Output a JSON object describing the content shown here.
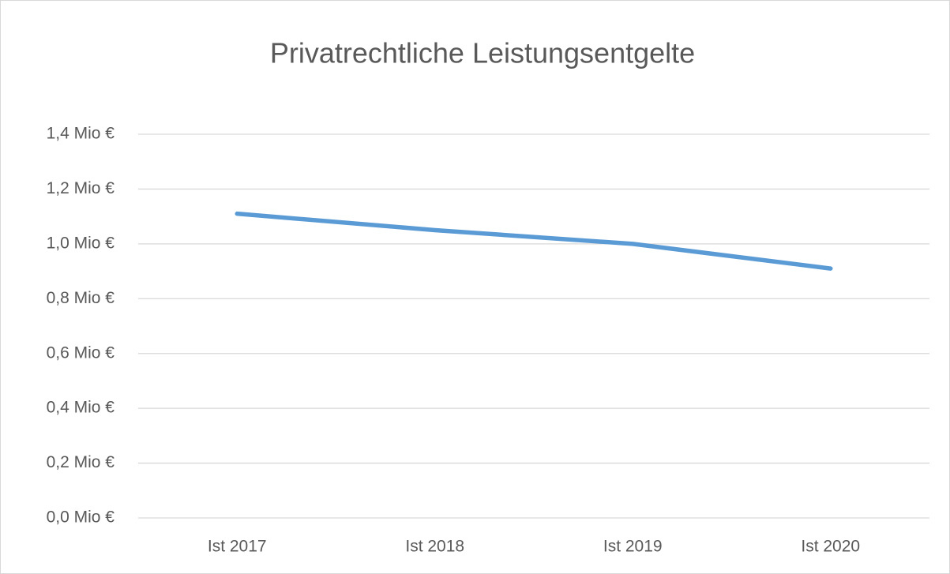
{
  "chart_data": {
    "type": "line",
    "title": "Privatrechtliche Leistungsentgelte",
    "categories": [
      "Ist 2017",
      "Ist 2018",
      "Ist 2019",
      "Ist 2020"
    ],
    "series": [
      {
        "name": "Privatrechtliche Leistungsentgelte",
        "color": "#5b9bd5",
        "values": [
          1.11,
          1.05,
          1.0,
          0.91
        ]
      }
    ],
    "ylim": [
      0,
      1.4
    ],
    "yticks": [
      {
        "value": 0,
        "label": "0,0 Mio €"
      },
      {
        "value": 0.2,
        "label": "0,2 Mio €"
      },
      {
        "value": 0.4,
        "label": "0,4 Mio €"
      },
      {
        "value": 0.6,
        "label": "0,6 Mio €"
      },
      {
        "value": 0.8,
        "label": "0,8 Mio €"
      },
      {
        "value": 1.0,
        "label": "1,0 Mio €"
      },
      {
        "value": 1.2,
        "label": "1,2 Mio €"
      },
      {
        "value": 1.4,
        "label": "1,4 Mio €"
      }
    ],
    "grid": true
  }
}
